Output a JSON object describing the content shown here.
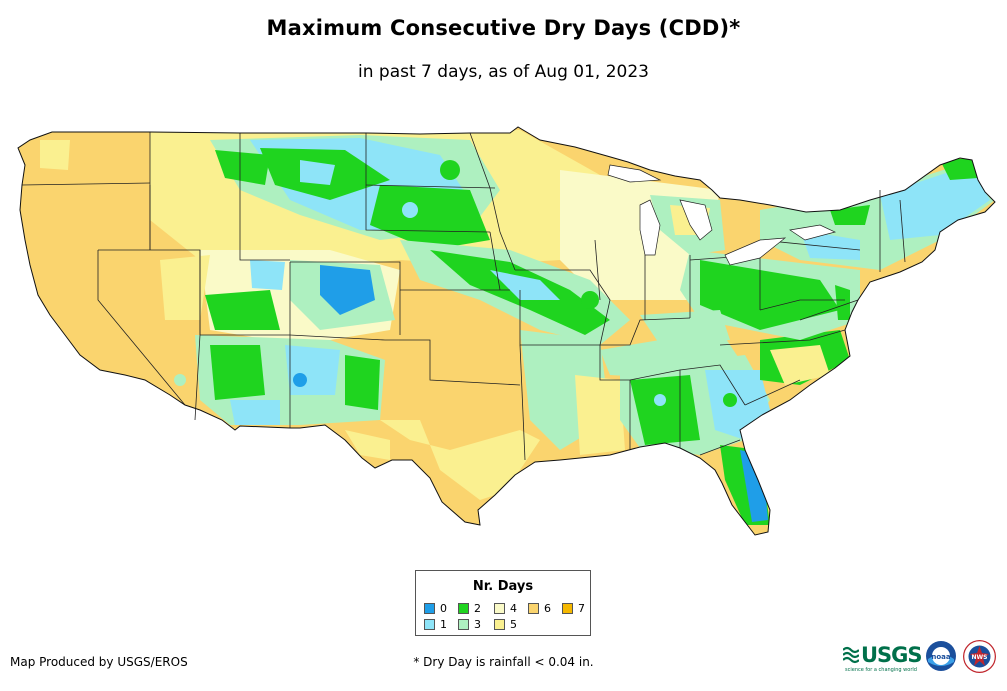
{
  "title": "Maximum Consecutive Dry Days (CDD)*",
  "subtitle": "in past 7 days, as of Aug 01, 2023",
  "legend": {
    "title": "Nr. Days",
    "items": [
      {
        "label": "0",
        "color": "#1f9ee8"
      },
      {
        "label": "1",
        "color": "#8ee4f8"
      },
      {
        "label": "2",
        "color": "#1fd41f"
      },
      {
        "label": "3",
        "color": "#aef0c0"
      },
      {
        "label": "4",
        "color": "#fafac8"
      },
      {
        "label": "5",
        "color": "#faf090"
      },
      {
        "label": "6",
        "color": "#fad46e"
      },
      {
        "label": "7",
        "color": "#f5b800"
      }
    ]
  },
  "credit": "Map Produced by USGS/EROS",
  "footnote": "* Dry Day is rainfall < 0.04 in.",
  "logos": {
    "usgs_text": "USGS",
    "usgs_tagline": "science for a changing world",
    "noaa_text": "noaa",
    "nws_text": "NWS"
  }
}
